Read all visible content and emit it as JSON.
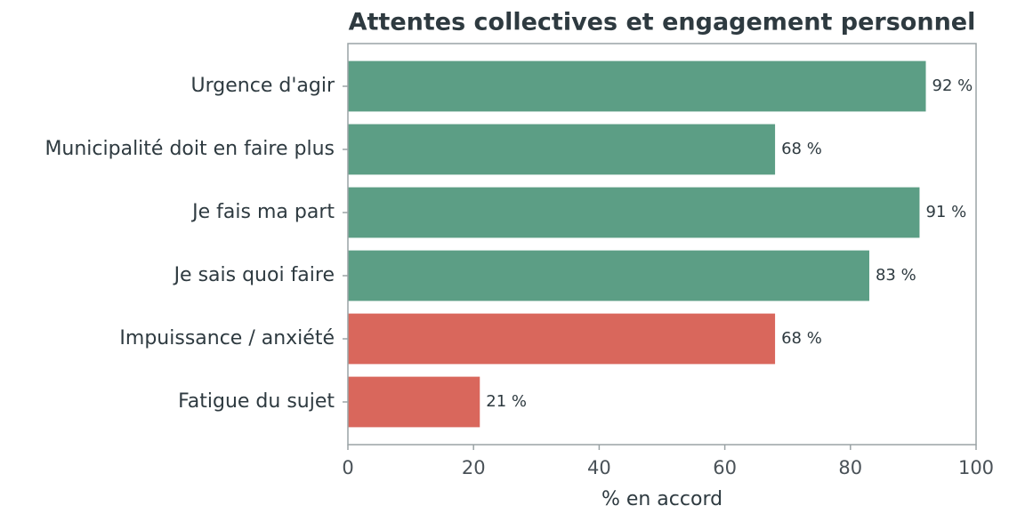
{
  "chart_data": {
    "type": "barh",
    "title": "Attentes collectives et engagement personnel",
    "xlabel": "% en accord",
    "categories": [
      "Urgence d'agir",
      "Municipalité doit en faire plus",
      "Je fais ma part",
      "Je sais quoi faire",
      "Impuissance / anxiété",
      "Fatigue du sujet"
    ],
    "values": [
      92,
      68,
      91,
      83,
      68,
      21
    ],
    "value_labels": [
      "92 %",
      "68 %",
      "91 %",
      "83 %",
      "68 %",
      "21 %"
    ],
    "colors": [
      "#5c9e85",
      "#5c9e85",
      "#5c9e85",
      "#5c9e85",
      "#d9675c",
      "#d9675c"
    ],
    "xlim": [
      0,
      100
    ],
    "xticks": [
      0,
      20,
      40,
      60,
      80,
      100
    ],
    "grid": false
  }
}
